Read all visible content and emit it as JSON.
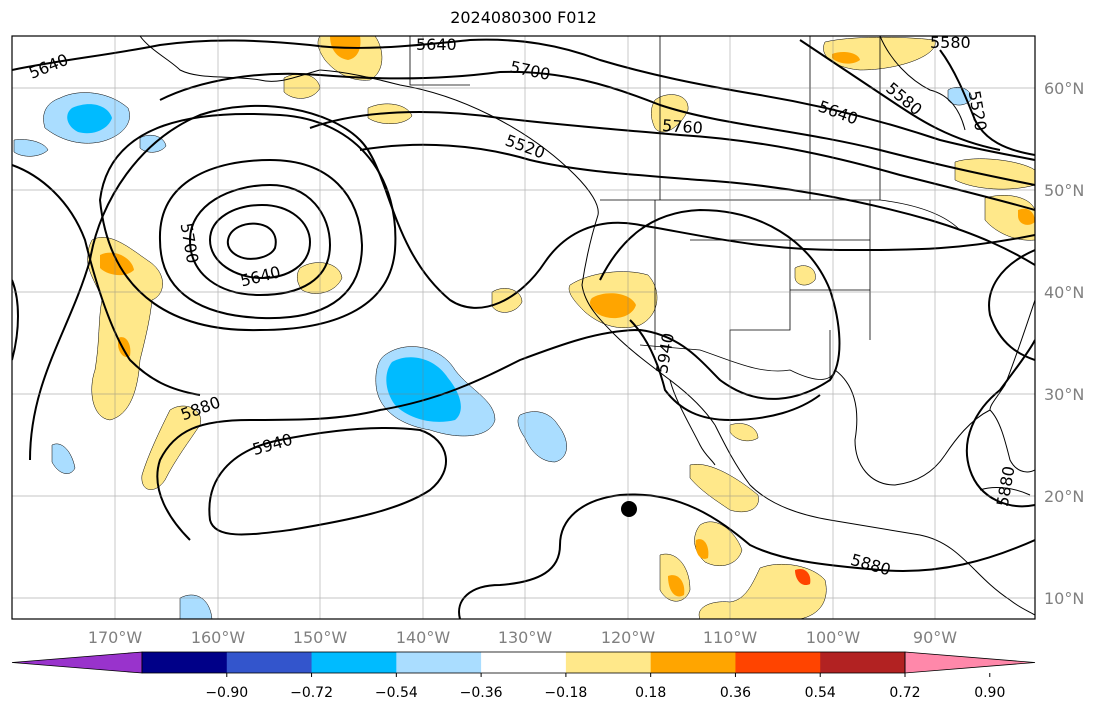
{
  "title": "2024080300 F012",
  "map": {
    "lon_labels": [
      "170°W",
      "160°W",
      "150°W",
      "140°W",
      "130°W",
      "120°W",
      "110°W",
      "100°W",
      "90°W"
    ],
    "lat_labels": [
      "60°N",
      "50°N",
      "40°N",
      "30°N",
      "20°N",
      "10°N"
    ],
    "contour_labels": [
      "5640",
      "5640",
      "5700",
      "5760",
      "5640",
      "5580",
      "5520",
      "5580",
      "5520",
      "5700",
      "5640",
      "5880",
      "5940",
      "5940",
      "5880",
      "5880"
    ],
    "marker": "storm-center-dot"
  },
  "colorbar": {
    "colors": [
      "#9933cc",
      "#000088",
      "#3355cc",
      "#00bbff",
      "#aaddff",
      "#ffffff",
      "#ffe88a",
      "#ffa500",
      "#ff4400",
      "#b22222",
      "#ff88aa"
    ],
    "ticks": [
      "−0.90",
      "−0.72",
      "−0.54",
      "−0.36",
      "−0.18",
      "0.18",
      "0.36",
      "0.54",
      "0.72",
      "0.90"
    ]
  }
}
